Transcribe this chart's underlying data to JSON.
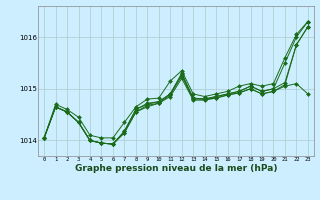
{
  "bg_color": "#cceeff",
  "grid_color": "#aacccc",
  "line_color": "#1a6b1a",
  "marker_color": "#1a6b1a",
  "xlabel": "Graphe pression niveau de la mer (hPa)",
  "xlabel_fontsize": 6.5,
  "xlim": [
    -0.5,
    23.5
  ],
  "ylim": [
    1013.7,
    1016.6
  ],
  "yticks": [
    1014,
    1015,
    1016
  ],
  "xticks": [
    0,
    1,
    2,
    3,
    4,
    5,
    6,
    7,
    8,
    9,
    10,
    11,
    12,
    13,
    14,
    15,
    16,
    17,
    18,
    19,
    20,
    21,
    22,
    23
  ],
  "series": [
    [
      1014.05,
      1014.7,
      1014.6,
      1014.45,
      1014.1,
      1014.05,
      1014.05,
      1014.35,
      1014.65,
      1014.8,
      1014.82,
      1015.15,
      1015.35,
      1014.9,
      1014.85,
      1014.9,
      1014.95,
      1015.05,
      1015.1,
      1015.05,
      1015.1,
      1015.6,
      1016.05,
      1016.3
    ],
    [
      1014.05,
      1014.65,
      1014.55,
      1014.35,
      1014.0,
      1013.95,
      1013.93,
      1014.15,
      1014.55,
      1014.65,
      1014.72,
      1014.85,
      1015.2,
      1014.78,
      1014.78,
      1014.82,
      1014.88,
      1014.92,
      1015.0,
      1014.9,
      1014.95,
      1015.05,
      1015.1,
      1014.9
    ],
    [
      1014.05,
      1014.65,
      1014.55,
      1014.35,
      1014.0,
      1013.95,
      1013.93,
      1014.15,
      1014.55,
      1014.68,
      1014.72,
      1014.88,
      1015.25,
      1014.8,
      1014.8,
      1014.82,
      1014.88,
      1014.92,
      1015.0,
      1014.9,
      1014.95,
      1015.08,
      1015.85,
      1016.2
    ],
    [
      1014.05,
      1014.65,
      1014.55,
      1014.35,
      1014.0,
      1013.95,
      1013.93,
      1014.18,
      1014.6,
      1014.7,
      1014.75,
      1014.9,
      1015.28,
      1014.82,
      1014.8,
      1014.85,
      1014.9,
      1014.95,
      1015.05,
      1014.95,
      1015.0,
      1015.12,
      1015.85,
      1016.2
    ],
    [
      1014.05,
      1014.65,
      1014.55,
      1014.35,
      1014.0,
      1013.95,
      1013.93,
      1014.18,
      1014.6,
      1014.72,
      1014.75,
      1014.9,
      1015.3,
      1014.82,
      1014.8,
      1014.85,
      1014.9,
      1014.95,
      1015.05,
      1014.95,
      1015.0,
      1015.5,
      1016.0,
      1016.3
    ]
  ]
}
